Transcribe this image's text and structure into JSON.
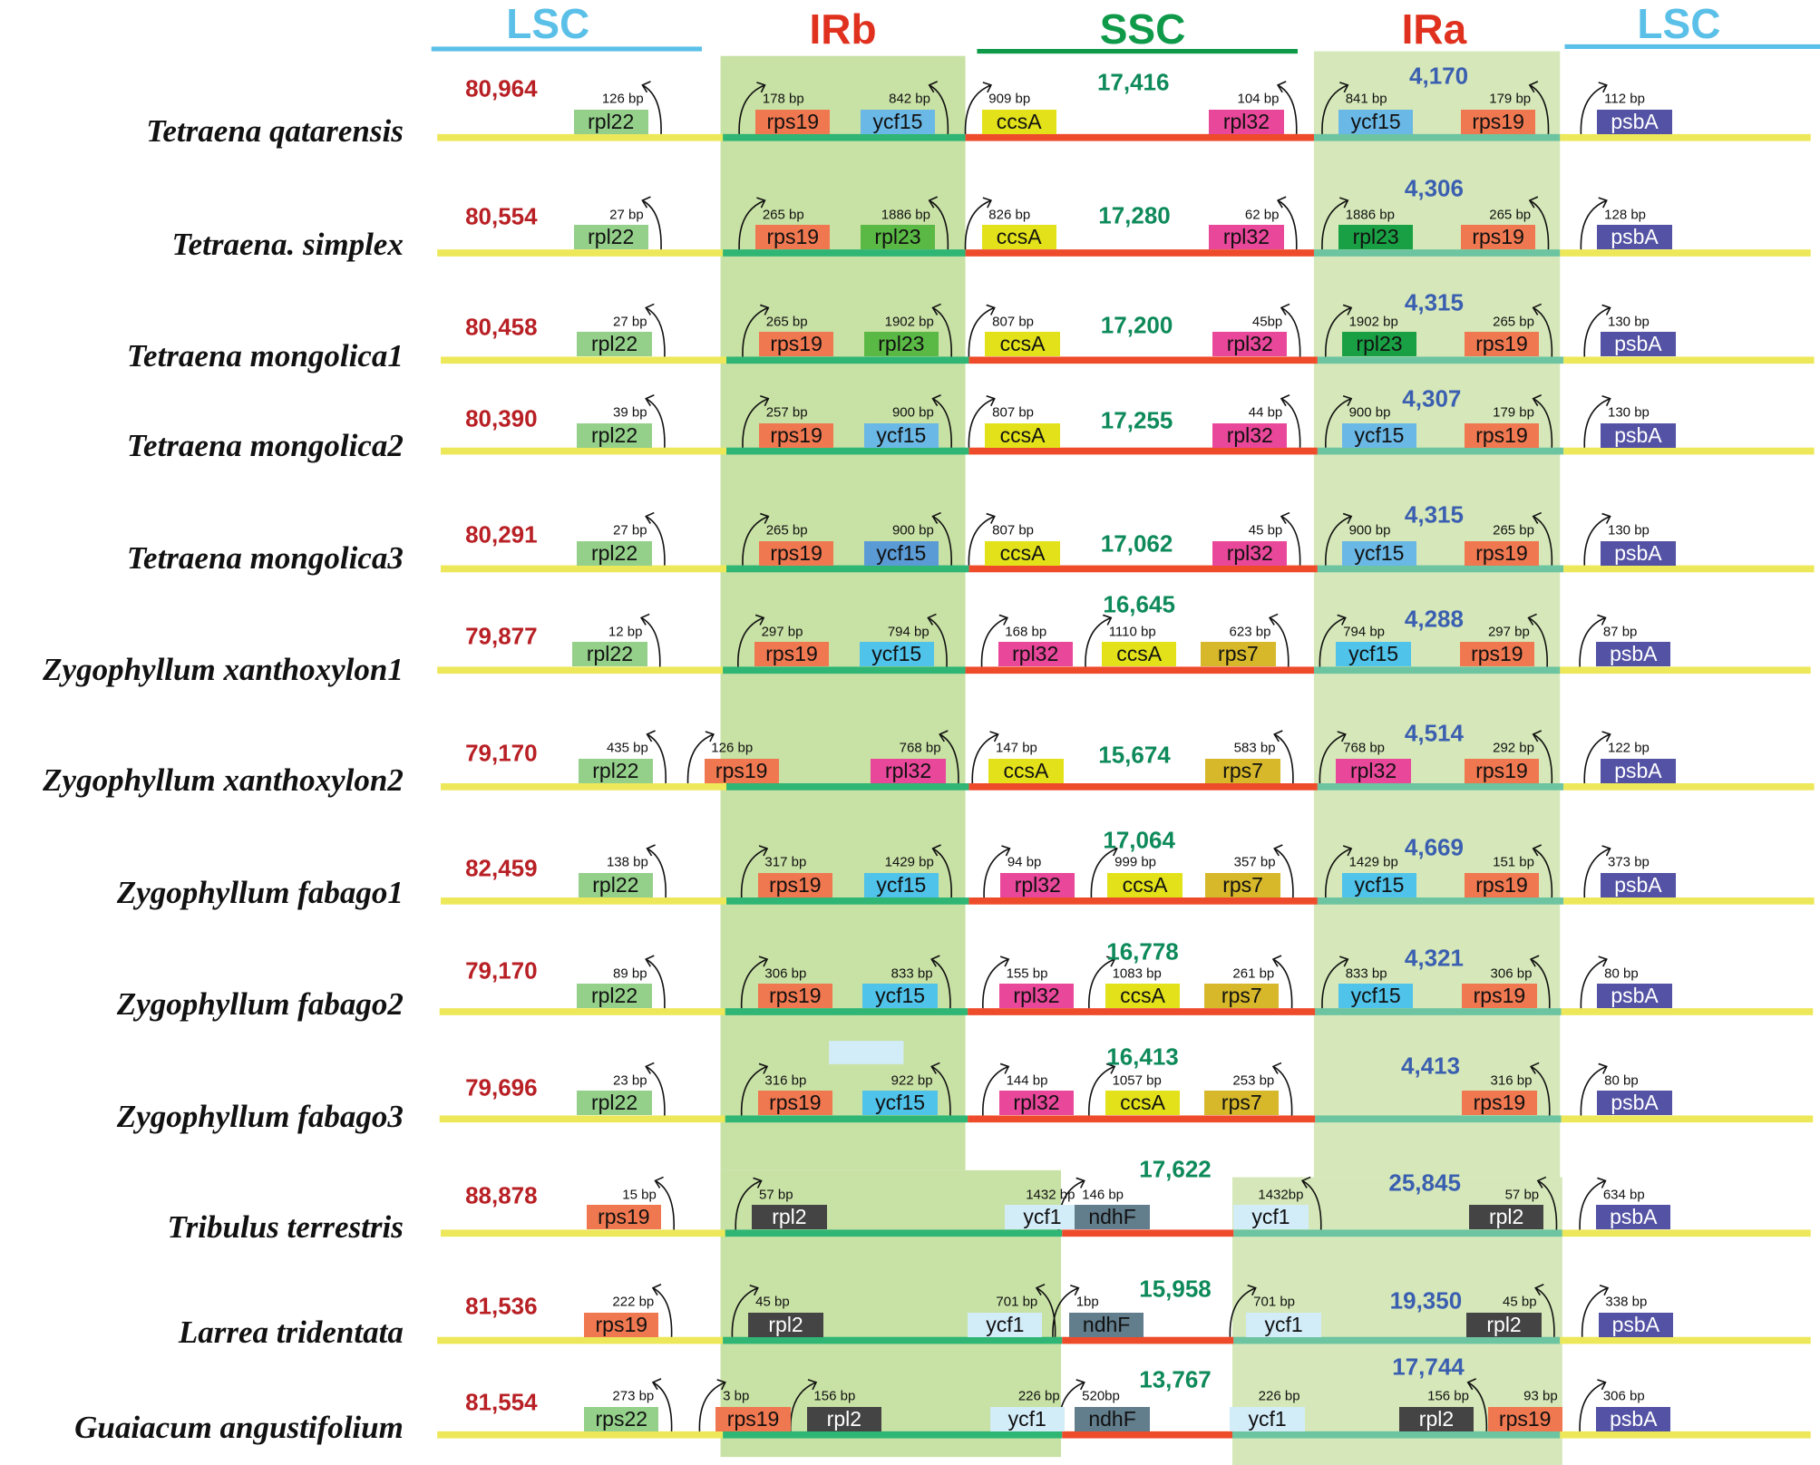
{
  "headers": {
    "lsc_left": "LSC",
    "irb": "IRb",
    "ssc": "SSC",
    "ira": "IRa",
    "lsc_right": "LSC"
  },
  "colors": {
    "lsc_header": "#5bc0e8",
    "ir_header": "#e0301e",
    "ssc_header": "#0f9a4a",
    "lsc_number": "#b82025",
    "ssc_number": "#0e8a5a",
    "ir_number": "#3b5fb0",
    "lsc_line": "#ede85a",
    "irb_line": "#2fb574",
    "ssc_line": "#ee4b2b",
    "ira_line": "#6cc4a0",
    "irb_shade": "#c8e1a5",
    "ira_shade": "#d6e8b9"
  },
  "gene_colors": {
    "rpl22": "#94d08a",
    "rps22": "#94d08a",
    "rps19": "#f07850",
    "ycf15": "#6ab8e6",
    "ccsA": "#e3e21a",
    "rpl32": "#e8479a",
    "psbA": "#5352a4",
    "rpl23": "#5ab944",
    "rps7": "#d6b82a",
    "rpl2": "#444444",
    "ndhF": "#627d8c",
    "ycf1": "#d2ecf8"
  },
  "light_text_genes": [
    "psbA",
    "rpl2"
  ],
  "rows": [
    {
      "species": "Tetraena qatarensis",
      "lsc": "80,964",
      "ssc": "17,416",
      "ir": "4,170",
      "genes": [
        {
          "gene": "rpl22",
          "bp": "126 bp",
          "arrow": "left"
        },
        {
          "gene": "rps19",
          "bp": "178 bp",
          "arrow": "right"
        },
        {
          "gene": "ycf15",
          "bp": "842 bp",
          "arrow": "left"
        },
        {
          "gene": "ccsA",
          "bp": "909 bp",
          "arrow": "right"
        },
        {
          "gene": "rpl32",
          "bp": "104 bp",
          "arrow": "left"
        },
        {
          "gene": "ycf15",
          "bp": "841 bp",
          "arrow": "right"
        },
        {
          "gene": "rps19",
          "bp": "179 bp",
          "arrow": "left"
        },
        {
          "gene": "psbA",
          "bp": "112 bp",
          "arrow": "right"
        }
      ]
    },
    {
      "species": "Tetraena. simplex",
      "lsc": "80,554",
      "ssc": "17,280",
      "ir": "4,306",
      "genes": [
        {
          "gene": "rpl22",
          "bp": "27 bp",
          "arrow": "left"
        },
        {
          "gene": "rps19",
          "bp": "265 bp",
          "arrow": "right"
        },
        {
          "gene": "rpl23",
          "bp": "1886 bp",
          "arrow": "left"
        },
        {
          "gene": "ccsA",
          "bp": "826 bp",
          "arrow": "right"
        },
        {
          "gene": "rpl32",
          "bp": "62 bp",
          "arrow": "left"
        },
        {
          "gene": "rpl23",
          "bp": "1886 bp",
          "arrow": "right",
          "color": "#1aa044"
        },
        {
          "gene": "rps19",
          "bp": "265 bp",
          "arrow": "left"
        },
        {
          "gene": "psbA",
          "bp": "128 bp",
          "arrow": "right"
        }
      ]
    },
    {
      "species": "Tetraena mongolica1",
      "lsc": "80,458",
      "ssc": "17,200",
      "ir": "4,315",
      "genes": [
        {
          "gene": "rpl22",
          "bp": "27 bp",
          "arrow": "left"
        },
        {
          "gene": "rps19",
          "bp": "265 bp",
          "arrow": "right"
        },
        {
          "gene": "rpl23",
          "bp": "1902 bp",
          "arrow": "left"
        },
        {
          "gene": "ccsA",
          "bp": "807 bp",
          "arrow": "right"
        },
        {
          "gene": "rpl32",
          "bp": "45bp",
          "arrow": "left"
        },
        {
          "gene": "rpl23",
          "bp": "1902 bp",
          "arrow": "right",
          "color": "#1aa044"
        },
        {
          "gene": "rps19",
          "bp": "265 bp",
          "arrow": "left"
        },
        {
          "gene": "psbA",
          "bp": "130 bp",
          "arrow": "right"
        }
      ]
    },
    {
      "species": "Tetraena mongolica2",
      "lsc": "80,390",
      "ssc": "17,255",
      "ir": "4,307",
      "genes": [
        {
          "gene": "rpl22",
          "bp": "39 bp",
          "arrow": "left"
        },
        {
          "gene": "rps19",
          "bp": "257 bp",
          "arrow": "right"
        },
        {
          "gene": "ycf15",
          "bp": "900 bp",
          "arrow": "left"
        },
        {
          "gene": "ccsA",
          "bp": "807 bp",
          "arrow": "right"
        },
        {
          "gene": "rpl32",
          "bp": "44 bp",
          "arrow": "left"
        },
        {
          "gene": "ycf15",
          "bp": "900 bp",
          "arrow": "right"
        },
        {
          "gene": "rps19",
          "bp": "179 bp",
          "arrow": "left"
        },
        {
          "gene": "psbA",
          "bp": "130 bp",
          "arrow": "right"
        }
      ]
    },
    {
      "species": "Tetraena mongolica3",
      "lsc": "80,291",
      "ssc": "17,062",
      "ir": "4,315",
      "genes": [
        {
          "gene": "rpl22",
          "bp": "27 bp",
          "arrow": "left"
        },
        {
          "gene": "rps19",
          "bp": "265 bp",
          "arrow": "right"
        },
        {
          "gene": "ycf15",
          "bp": "900 bp",
          "arrow": "left",
          "color": "#5b9bd5"
        },
        {
          "gene": "ccsA",
          "bp": "807 bp",
          "arrow": "right"
        },
        {
          "gene": "rpl32",
          "bp": "45 bp",
          "arrow": "left"
        },
        {
          "gene": "ycf15",
          "bp": "900 bp",
          "arrow": "right"
        },
        {
          "gene": "rps19",
          "bp": "265 bp",
          "arrow": "left"
        },
        {
          "gene": "psbA",
          "bp": "130 bp",
          "arrow": "right"
        }
      ]
    },
    {
      "species": "Zygophyllum xanthoxylon1",
      "lsc": "79,877",
      "ssc": "16,645",
      "ir": "4,288",
      "genes": [
        {
          "gene": "rpl22",
          "bp": "12 bp",
          "arrow": "left"
        },
        {
          "gene": "rps19",
          "bp": "297 bp",
          "arrow": "right"
        },
        {
          "gene": "ycf15",
          "bp": "794 bp",
          "arrow": "left",
          "color": "#4fc3ea"
        },
        {
          "gene": "rpl32",
          "bp": "168 bp",
          "arrow": "right"
        },
        {
          "gene": "ccsA",
          "bp": "1110 bp",
          "arrow": "right"
        },
        {
          "gene": "rps7",
          "bp": "623 bp",
          "arrow": "left"
        },
        {
          "gene": "ycf15",
          "bp": "794 bp",
          "arrow": "right",
          "color": "#4fc3ea"
        },
        {
          "gene": "rps19",
          "bp": "297 bp",
          "arrow": "left"
        },
        {
          "gene": "psbA",
          "bp": "87 bp",
          "arrow": "right"
        }
      ]
    },
    {
      "species": "Zygophyllum xanthoxylon2",
      "lsc": "79,170",
      "ssc": "15,674",
      "ir": "4,514",
      "genes": [
        {
          "gene": "rpl22",
          "bp": "435 bp",
          "arrow": "left"
        },
        {
          "gene": "rps19",
          "bp": "126 bp",
          "arrow": "right"
        },
        {
          "gene": "rpl32",
          "bp": "768 bp",
          "arrow": "left"
        },
        {
          "gene": "ccsA",
          "bp": "147 bp",
          "arrow": "right"
        },
        {
          "gene": "rps7",
          "bp": "583 bp",
          "arrow": "left"
        },
        {
          "gene": "rpl32",
          "bp": "768 bp",
          "arrow": "right"
        },
        {
          "gene": "rps19",
          "bp": "292 bp",
          "arrow": "left"
        },
        {
          "gene": "psbA",
          "bp": "122 bp",
          "arrow": "right"
        }
      ]
    },
    {
      "species": "Zygophyllum fabago1",
      "lsc": "82,459",
      "ssc": "17,064",
      "ir": "4,669",
      "genes": [
        {
          "gene": "rpl22",
          "bp": "138 bp",
          "arrow": "left"
        },
        {
          "gene": "rps19",
          "bp": "317 bp",
          "arrow": "right"
        },
        {
          "gene": "ycf15",
          "bp": "1429 bp",
          "arrow": "left",
          "color": "#4fc3ea"
        },
        {
          "gene": "rpl32",
          "bp": "94 bp",
          "arrow": "right"
        },
        {
          "gene": "ccsA",
          "bp": "999 bp",
          "arrow": "right"
        },
        {
          "gene": "rps7",
          "bp": "357 bp",
          "arrow": "left"
        },
        {
          "gene": "ycf15",
          "bp": "1429 bp",
          "arrow": "right",
          "color": "#4fc3ea"
        },
        {
          "gene": "rps19",
          "bp": "151 bp",
          "arrow": "left"
        },
        {
          "gene": "psbA",
          "bp": "373 bp",
          "arrow": "right"
        }
      ]
    },
    {
      "species": "Zygophyllum fabago2",
      "lsc": "79,170",
      "ssc": "16,778",
      "ir": "4,321",
      "genes": [
        {
          "gene": "rpl22",
          "bp": "89 bp",
          "arrow": "left"
        },
        {
          "gene": "rps19",
          "bp": "306 bp",
          "arrow": "right"
        },
        {
          "gene": "ycf15",
          "bp": "833 bp",
          "arrow": "left",
          "color": "#4fc3ea"
        },
        {
          "gene": "rpl32",
          "bp": "155 bp",
          "arrow": "right"
        },
        {
          "gene": "ccsA",
          "bp": "1083 bp",
          "arrow": "right"
        },
        {
          "gene": "rps7",
          "bp": "261 bp",
          "arrow": "left"
        },
        {
          "gene": "ycf15",
          "bp": "833 bp",
          "arrow": "right",
          "color": "#4fc3ea"
        },
        {
          "gene": "rps19",
          "bp": "306 bp",
          "arrow": "left"
        },
        {
          "gene": "psbA",
          "bp": "80 bp",
          "arrow": "right"
        }
      ]
    },
    {
      "species": "Zygophyllum fabago3",
      "lsc": "79,696",
      "ssc": "16,413",
      "ir": "4,413",
      "genes": [
        {
          "gene": "rpl22",
          "bp": "23 bp",
          "arrow": "left"
        },
        {
          "gene": "rps19",
          "bp": "316 bp",
          "arrow": "right"
        },
        {
          "gene": "ycf15",
          "bp": "922 bp",
          "arrow": "left",
          "color": "#4fc3ea"
        },
        {
          "gene": "rpl32",
          "bp": "144 bp",
          "arrow": "right"
        },
        {
          "gene": "ccsA",
          "bp": "1057 bp",
          "arrow": "right"
        },
        {
          "gene": "rps7",
          "bp": "253 bp",
          "arrow": "left"
        },
        {
          "gene": "rps19",
          "bp": "316 bp",
          "arrow": "left"
        },
        {
          "gene": "psbA",
          "bp": "80 bp",
          "arrow": "right"
        }
      ]
    },
    {
      "species": "Tribulus terrestris",
      "lsc": "88,878",
      "ssc": "17,622",
      "ir": "25,845",
      "genes": [
        {
          "gene": "rps19",
          "bp": "15 bp",
          "arrow": "left"
        },
        {
          "gene": "rpl2",
          "bp": "57 bp",
          "arrow": "right"
        },
        {
          "gene": "ycf1",
          "bp": "1432 bp",
          "arrow": "none"
        },
        {
          "gene": "ndhF",
          "bp": "146 bp",
          "arrow": "right"
        },
        {
          "gene": "ycf1",
          "bp": "1432bp",
          "arrow": "left"
        },
        {
          "gene": "rpl2",
          "bp": "57 bp",
          "arrow": "left"
        },
        {
          "gene": "psbA",
          "bp": "634 bp",
          "arrow": "right"
        }
      ]
    },
    {
      "species": "Larrea tridentata",
      "lsc": "81,536",
      "ssc": "15,958",
      "ir": "19,350",
      "genes": [
        {
          "gene": "rps19",
          "bp": "222 bp",
          "arrow": "left"
        },
        {
          "gene": "rpl2",
          "bp": "45 bp",
          "arrow": "right"
        },
        {
          "gene": "ycf1",
          "bp": "701 bp",
          "arrow": "left"
        },
        {
          "gene": "ndhF",
          "bp": "1bp",
          "arrow": "right"
        },
        {
          "gene": "ycf1",
          "bp": "701 bp",
          "arrow": "right"
        },
        {
          "gene": "rpl2",
          "bp": "45 bp",
          "arrow": "left"
        },
        {
          "gene": "psbA",
          "bp": "338 bp",
          "arrow": "right"
        }
      ]
    },
    {
      "species": "Guaiacum angustifolium",
      "lsc": "81,554",
      "ssc": "13,767",
      "ir": "17,744",
      "genes": [
        {
          "gene": "rps22",
          "bp": "273 bp",
          "arrow": "left"
        },
        {
          "gene": "rps19",
          "bp": "3 bp",
          "arrow": "right"
        },
        {
          "gene": "rpl2",
          "bp": "156 bp",
          "arrow": "right"
        },
        {
          "gene": "ycf1",
          "bp": "226 bp",
          "arrow": "none"
        },
        {
          "gene": "ndhF",
          "bp": "520bp",
          "arrow": "right"
        },
        {
          "gene": "ycf1",
          "bp": "226 bp",
          "arrow": "none"
        },
        {
          "gene": "rpl2",
          "bp": "156 bp",
          "arrow": "left"
        },
        {
          "gene": "rps19",
          "bp": "93 bp",
          "arrow": "none"
        },
        {
          "gene": "psbA",
          "bp": "306 bp",
          "arrow": "right"
        }
      ]
    }
  ]
}
